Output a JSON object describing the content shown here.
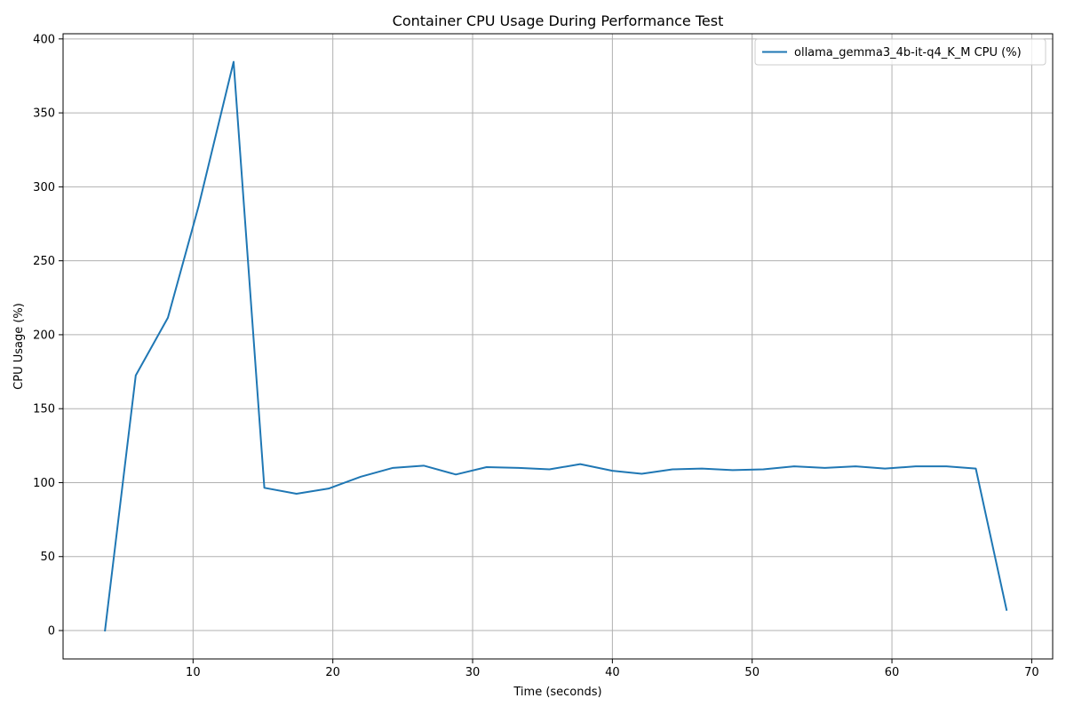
{
  "chart_data": {
    "type": "line",
    "title": "Container CPU Usage During Performance Test",
    "xlabel": "Time (seconds)",
    "ylabel": "CPU Usage (%)",
    "xlim": [
      0.7,
      71.5
    ],
    "ylim": [
      -19.2,
      403.5
    ],
    "xticks": [
      10,
      20,
      30,
      40,
      50,
      60,
      70
    ],
    "yticks": [
      0,
      50,
      100,
      150,
      200,
      250,
      300,
      350,
      400
    ],
    "grid": true,
    "legend_position": "top-right",
    "series": [
      {
        "name": "ollama_gemma3_4b-it-q4_K_M CPU (%)",
        "color": "#1f77b4",
        "x": [
          3.7,
          5.9,
          8.2,
          10.4,
          12.9,
          15.1,
          17.4,
          19.7,
          22.0,
          24.3,
          26.5,
          28.8,
          31.0,
          33.3,
          35.5,
          37.7,
          40.0,
          42.1,
          44.3,
          46.4,
          48.6,
          50.8,
          53.0,
          55.2,
          57.4,
          59.5,
          61.7,
          63.9,
          66.0,
          68.2
        ],
        "y": [
          0,
          172.5,
          211.5,
          287,
          384.5,
          96.5,
          92.5,
          96,
          104,
          110,
          111.5,
          105.5,
          110.5,
          110,
          109,
          112.5,
          108,
          106,
          109,
          109.5,
          108.5,
          109,
          111,
          110,
          111,
          109.5,
          111,
          111,
          109.5,
          14
        ]
      }
    ]
  }
}
